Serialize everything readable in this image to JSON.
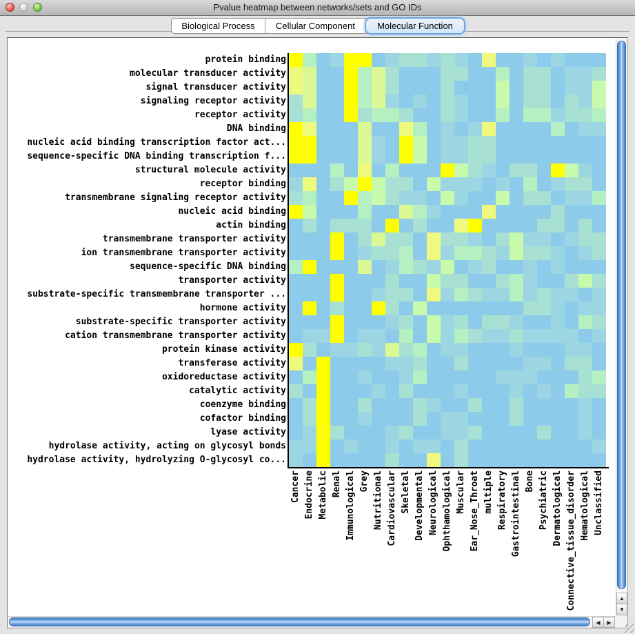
{
  "window": {
    "title": "Pvalue heatmap between networks/sets and GO IDs"
  },
  "tabs": [
    {
      "label": "Biological Process",
      "selected": false
    },
    {
      "label": "Cellular Component",
      "selected": false
    },
    {
      "label": "Molecular Function",
      "selected": true
    }
  ],
  "chart_data": {
    "type": "heatmap",
    "title": "Pvalue heatmap between networks/sets and GO IDs",
    "rows": [
      "protein binding",
      "molecular transducer activity",
      "signal transducer activity",
      "signaling receptor activity",
      "receptor activity",
      "DNA binding",
      "nucleic acid binding transcription factor act...",
      "sequence-specific DNA binding transcription f...",
      "structural molecule activity",
      "receptor binding",
      "transmembrane signaling receptor activity",
      "nucleic acid binding",
      "actin binding",
      "transmembrane transporter activity",
      "ion transmembrane transporter activity",
      "sequence-specific DNA binding",
      "transporter activity",
      "substrate-specific transmembrane transporter ...",
      "hormone activity",
      "substrate-specific transporter activity",
      "cation transmembrane transporter activity",
      "protein kinase activity",
      "transferase activity",
      "oxidoreductase activity",
      "catalytic activity",
      "coenzyme binding",
      "cofactor binding",
      "lyase activity",
      "hydrolase activity, acting on glycosyl bonds",
      "hydrolase activity, hydrolyzing O-glycosyl co..."
    ],
    "columns": [
      "Cancer",
      "Endocrine",
      "Metabolic",
      "Renal",
      "Immunological",
      "Grey",
      "Nutritional",
      "Cardiovascular",
      "Skeletal",
      "Developmental",
      "Neurological",
      "Ophthamological",
      "Muscular",
      "Ear_Nose_Throat",
      "multiple",
      "Respiratory",
      "Gastrointestinal",
      "Bone",
      "Psychiatric",
      "Dermatological",
      "Connective_tissue_disorder",
      "Hematological",
      "Unclassified"
    ],
    "palette": {
      "B": "#8dcbeb",
      "b": "#9cd6e2",
      "T": "#a9e0d4",
      "G": "#b5f0c2",
      "g": "#c8faab",
      "L": "#dcf895",
      "l": "#eefa7e",
      "Y": "#ffff00"
    },
    "grid": [
      "YGBbYYBbTTbTbBlBBbBbBBB",
      "lLBBYGLTBBBTTBBGBTTBbbT",
      "lLBBYGLTBBBTBBBgBTTBbbg",
      "TLBBYGLbBbBTbBBgBTTBTbg",
      "TGBBYTGGTBBTbBBGBGGbTTG",
      "YlBBBLBBlGBbBblBBBBGBbb",
      "YYBBBLbBYgBbbTTBBBBBBBB",
      "YYBBBLbBYgBbbTTBBBBBBBB",
      "BBBGBlBGBBBYgTbBTTBYgbB",
      "blBTgYgTTBgbbbBbBGBbTTB",
      "TGBBYGgTbbBgbBBgBTTBbbG",
      "YgBBBGBBLGbBBBlBBBBTBBB",
      "BTBTTTBYBTBBlYBBBBTTBTB",
      "BBBYBTLTTBlTTbBTgbbBbTT",
      "BBBYBbTTGBlbGGTbgTTbBbT",
      "GYBBBLBbGTbgBbTBBbBbBBB",
      "BBBYBBBTBBgTTBBTGbBBTgT",
      "BBBYBBbTTBlbGTbbGbTbbBb",
      "BYBTBBYTBgBBBBBBBTTbBbb",
      "BBBYBBBbTBgbTBTTbBBbBGT",
      "BbbYBbbBGBgbGTbbTbbbbBb",
      "YTBbbTbLTGBbbBBBbBBBbbB",
      "lBYBBBBbbTBBTBBBBbbBTTB",
      "BGYBBbBBbGBBBBBbbbBBBTG",
      "TBYBBBbBTBBBbBBBbBbBGTT",
      "BTYBBTBBBTbBBTBBTBBBBbB",
      "BTYBBbBBBTBbbBBBTBBBBbB",
      "BbYTBBBbTBBbbTBBBBTBBbB",
      "bbYBbBBbBbbBTBBBBBBBBBb",
      "bBYBBBBTBBlBTBBBBBBBBBB"
    ]
  },
  "scrollbars": {
    "up": "▲",
    "down": "▼",
    "left": "◀",
    "right": "▶"
  }
}
